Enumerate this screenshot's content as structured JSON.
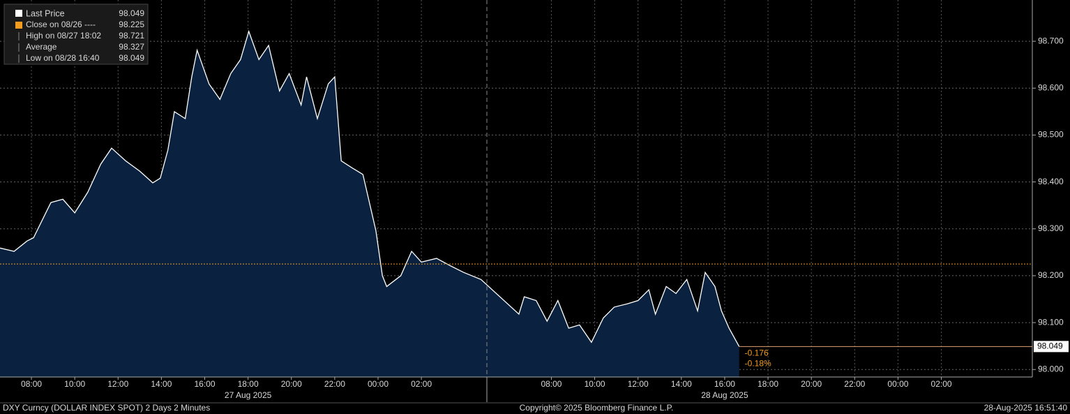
{
  "chart_data": {
    "type": "area",
    "series": [
      {
        "name": "Last Price",
        "color": "#ffffff",
        "fill": "#0a2240",
        "values": [
          98.259,
          98.252,
          98.274,
          98.281,
          98.356,
          98.363,
          98.334,
          98.378,
          98.438,
          98.472,
          98.445,
          98.423,
          98.398,
          98.408,
          98.468,
          98.55,
          98.535,
          98.624,
          98.681,
          98.609,
          98.576,
          98.631,
          98.661,
          98.721,
          98.661,
          98.691,
          98.594,
          98.631,
          98.564,
          98.624,
          98.535,
          98.609,
          98.624,
          98.445,
          98.43,
          98.416,
          98.356,
          98.296,
          98.2,
          98.177,
          98.2,
          98.252,
          98.229,
          98.237,
          98.222,
          98.207,
          98.192,
          98.118,
          98.155,
          98.147,
          98.103,
          98.147,
          98.088,
          98.095,
          98.058,
          98.11,
          98.133,
          98.14,
          98.147,
          98.17,
          98.118,
          98.177,
          98.162,
          98.192,
          98.125,
          98.207,
          98.177,
          98.125,
          98.088,
          98.049
        ]
      }
    ],
    "x": [
      6.55,
      7.2,
      7.8,
      8.1,
      8.9,
      9.45,
      10.0,
      10.6,
      11.2,
      11.7,
      12.35,
      13.0,
      13.6,
      13.95,
      14.3,
      14.6,
      15.1,
      15.4,
      15.65,
      16.2,
      16.7,
      17.2,
      17.65,
      18.033,
      18.5,
      18.95,
      19.45,
      19.9,
      20.45,
      20.7,
      21.2,
      21.7,
      22.0,
      22.3,
      22.8,
      23.3,
      23.6,
      23.9,
      24.2,
      24.4,
      25.05,
      25.55,
      26.0,
      26.7,
      27.3,
      27.95,
      28.75,
      30.5,
      30.75,
      31.3,
      31.8,
      32.3,
      32.8,
      33.3,
      33.85,
      34.4,
      34.9,
      35.5,
      36.0,
      36.5,
      36.8,
      37.3,
      37.75,
      38.25,
      38.75,
      39.1,
      39.55,
      39.85,
      40.2,
      40.667
    ],
    "xlim": [
      6.55,
      54.2
    ],
    "xticks": [
      {
        "value": 8,
        "label": "08:00"
      },
      {
        "value": 10,
        "label": "10:00"
      },
      {
        "value": 12,
        "label": "12:00"
      },
      {
        "value": 14,
        "label": "14:00"
      },
      {
        "value": 16,
        "label": "16:00"
      },
      {
        "value": 18,
        "label": "18:00"
      },
      {
        "value": 20,
        "label": "20:00"
      },
      {
        "value": 22,
        "label": "22:00"
      },
      {
        "value": 24,
        "label": "00:00"
      },
      {
        "value": 26,
        "label": "02:00"
      },
      {
        "value": 32,
        "label": "08:00"
      },
      {
        "value": 34,
        "label": "10:00"
      },
      {
        "value": 36,
        "label": "12:00"
      },
      {
        "value": 38,
        "label": "14:00"
      },
      {
        "value": 40,
        "label": "16:00"
      },
      {
        "value": 42,
        "label": "18:00"
      },
      {
        "value": 44,
        "label": "20:00"
      },
      {
        "value": 46,
        "label": "22:00"
      },
      {
        "value": 48,
        "label": "00:00"
      },
      {
        "value": 50,
        "label": "02:00"
      }
    ],
    "ylim": [
      97.984,
      98.788
    ],
    "yticks": [
      {
        "value": 98.0,
        "label": "98.000"
      },
      {
        "value": 98.1,
        "label": "98.100"
      },
      {
        "value": 98.2,
        "label": "98.200"
      },
      {
        "value": 98.3,
        "label": "98.300"
      },
      {
        "value": 98.4,
        "label": "98.400"
      },
      {
        "value": 98.5,
        "label": "98.500"
      },
      {
        "value": 98.6,
        "label": "98.600"
      },
      {
        "value": 98.7,
        "label": "98.700"
      }
    ],
    "grid": true,
    "date_labels": [
      {
        "value": 18,
        "label": "27 Aug 2025"
      },
      {
        "value": 40,
        "label": "28 Aug 2025"
      }
    ],
    "last_value": 98.049,
    "legend_items": [
      {
        "label": "Close on 08/26 ----",
        "value": 98.225,
        "color": "#f39c1f"
      },
      {
        "label": "High on 08/27 18:02",
        "value": 98.721
      },
      {
        "label": "Average",
        "value": 98.327
      },
      {
        "label": "Low on 08/28 16:40",
        "value": 98.049
      }
    ],
    "change": -0.176,
    "change_pct": "-0.18%",
    "footer": {
      "left": "DXY Curncy (DOLLAR INDEX SPOT) 2 Days 2 Minutes",
      "center": "Copyright© 2025 Bloomberg Finance L.P.",
      "right": "28-Aug-2025 16:51:40"
    }
  }
}
